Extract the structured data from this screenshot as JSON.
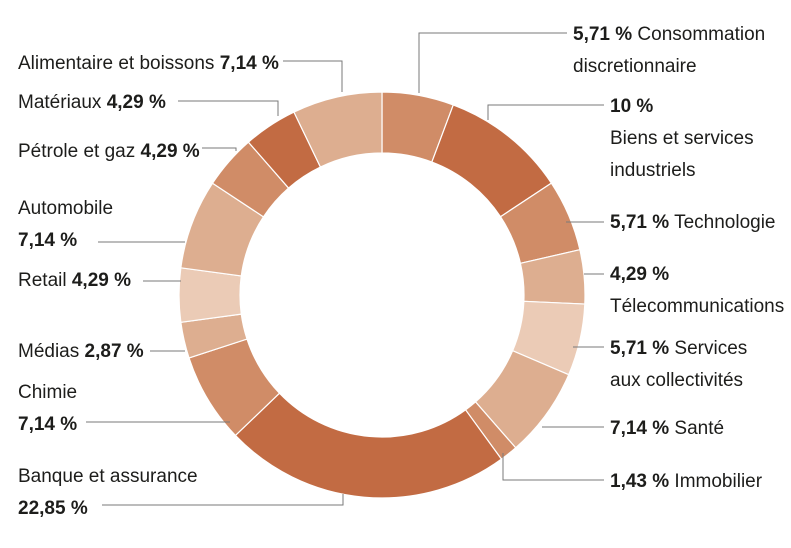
{
  "chart_data": {
    "type": "pie",
    "series": [
      {
        "label": "Consommation discretionnaire",
        "value_text": "5,71 %",
        "value": 5.71,
        "color": "#d08c67"
      },
      {
        "label": "Biens et services industriels",
        "value_text": "10 %",
        "value": 10.0,
        "color": "#c26b43"
      },
      {
        "label": "Technologie",
        "value_text": "5,71 %",
        "value": 5.71,
        "color": "#d08c67"
      },
      {
        "label": "Télecommunications",
        "value_text": "4,29 %",
        "value": 4.29,
        "color": "#ddae90"
      },
      {
        "label": "Services aux collectivités",
        "value_text": "5,71 %",
        "value": 5.71,
        "color": "#ebcbb6"
      },
      {
        "label": "Santé",
        "value_text": "7,14 %",
        "value": 7.14,
        "color": "#ddae90"
      },
      {
        "label": "Immobilier",
        "value_text": "1,43 %",
        "value": 1.43,
        "color": "#d08c67"
      },
      {
        "label": "Banque et assurance",
        "value_text": "22,85 %",
        "value": 22.85,
        "color": "#c26b43"
      },
      {
        "label": "Chimie",
        "value_text": "7,14 %",
        "value": 7.14,
        "color": "#d08c67"
      },
      {
        "label": "Médias",
        "value_text": "2,87 %",
        "value": 2.87,
        "color": "#ddae90"
      },
      {
        "label": "Retail",
        "value_text": "4,29 %",
        "value": 4.29,
        "color": "#ebcbb6"
      },
      {
        "label": "Automobile",
        "value_text": "7,14 %",
        "value": 7.14,
        "color": "#ddae90"
      },
      {
        "label": "Pétrole et gaz",
        "value_text": "4,29 %",
        "value": 4.29,
        "color": "#d08c67"
      },
      {
        "label": "Matériaux",
        "value_text": "4,29 %",
        "value": 4.29,
        "color": "#c26b43"
      },
      {
        "label": "Alimentaire et boissons",
        "value_text": "7,14 %",
        "value": 7.14,
        "color": "#ddae90"
      }
    ],
    "labels": [
      {
        "lines": [
          [
            {
              "t": "5,71 %",
              "b": true
            },
            {
              "t": " Consommation"
            }
          ],
          [
            {
              "t": "discretionnaire"
            }
          ]
        ]
      },
      {
        "lines": [
          [
            {
              "t": "10 %",
              "b": true
            }
          ],
          [
            {
              "t": "Biens et services"
            }
          ],
          [
            {
              "t": "industriels"
            }
          ]
        ]
      },
      {
        "lines": [
          [
            {
              "t": "5,71 %",
              "b": true
            },
            {
              "t": " Technologie"
            }
          ]
        ]
      },
      {
        "lines": [
          [
            {
              "t": "4,29 %",
              "b": true
            }
          ],
          [
            {
              "t": "Télecommunications"
            }
          ]
        ]
      },
      {
        "lines": [
          [
            {
              "t": "5,71 %",
              "b": true
            },
            {
              "t": " Services"
            }
          ],
          [
            {
              "t": "aux collectivités"
            }
          ]
        ]
      },
      {
        "lines": [
          [
            {
              "t": "7,14 %",
              "b": true
            },
            {
              "t": " Santé"
            }
          ]
        ]
      },
      {
        "lines": [
          [
            {
              "t": "1,43 %",
              "b": true
            },
            {
              "t": " Immobilier"
            }
          ]
        ]
      },
      {
        "lines": [
          [
            {
              "t": "Banque et assurance"
            }
          ],
          [
            {
              "t": "22,85 %",
              "b": true
            }
          ]
        ]
      },
      {
        "lines": [
          [
            {
              "t": "Chimie"
            }
          ],
          [
            {
              "t": "7,14 %",
              "b": true
            }
          ]
        ]
      },
      {
        "lines": [
          [
            {
              "t": "Médias "
            },
            {
              "t": "2,87 %",
              "b": true
            }
          ]
        ]
      },
      {
        "lines": [
          [
            {
              "t": "Retail "
            },
            {
              "t": "4,29 %",
              "b": true
            }
          ]
        ]
      },
      {
        "lines": [
          [
            {
              "t": "Automobile"
            }
          ],
          [
            {
              "t": "7,14 %",
              "b": true
            }
          ]
        ]
      },
      {
        "lines": [
          [
            {
              "t": "Pétrole et gaz "
            },
            {
              "t": "4,29 %",
              "b": true
            }
          ]
        ]
      },
      {
        "lines": [
          [
            {
              "t": "Matériaux "
            },
            {
              "t": "4,29 %",
              "b": true
            }
          ]
        ]
      },
      {
        "lines": [
          [
            {
              "t": "Alimentaire et boissons "
            },
            {
              "t": "7,14 %",
              "b": true
            }
          ]
        ]
      }
    ]
  }
}
